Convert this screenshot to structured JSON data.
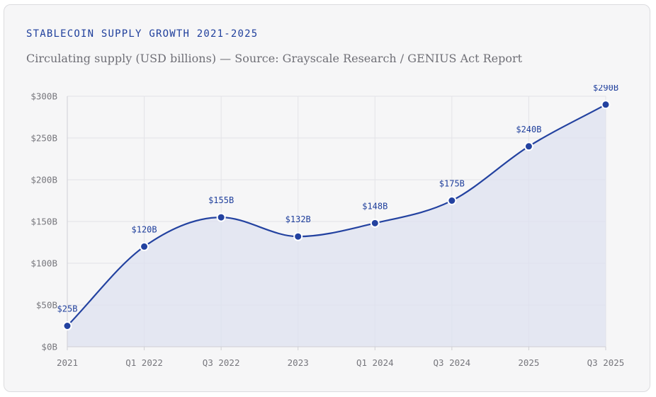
{
  "header": {
    "title": "STABLECOIN SUPPLY GROWTH 2021-2025",
    "subtitle": "Circulating supply (USD billions) — Source: Grayscale Research / GENIUS Act Report"
  },
  "colors": {
    "accent": "#1f3f9c",
    "line": "#2342a0",
    "area_fill": "#dde1f0",
    "card_bg": "#f6f6f7"
  },
  "chart_data": {
    "type": "area",
    "categories": [
      "2021",
      "Q1 2022",
      "Q3 2022",
      "2023",
      "Q1 2024",
      "Q3 2024",
      "2025",
      "Q3 2025"
    ],
    "values": [
      25,
      120,
      155,
      132,
      148,
      175,
      240,
      290
    ],
    "data_labels": [
      "$25B",
      "$120B",
      "$155B",
      "$132B",
      "$148B",
      "$175B",
      "$240B",
      "$290B"
    ],
    "yticks": [
      0,
      50,
      100,
      150,
      200,
      250,
      300
    ],
    "ytick_labels": [
      "$0B",
      "$50B",
      "$100B",
      "$150B",
      "$200B",
      "$250B",
      "$300B"
    ],
    "ylim": [
      0,
      300
    ],
    "smooth": true,
    "grid": true,
    "legend": "none"
  }
}
